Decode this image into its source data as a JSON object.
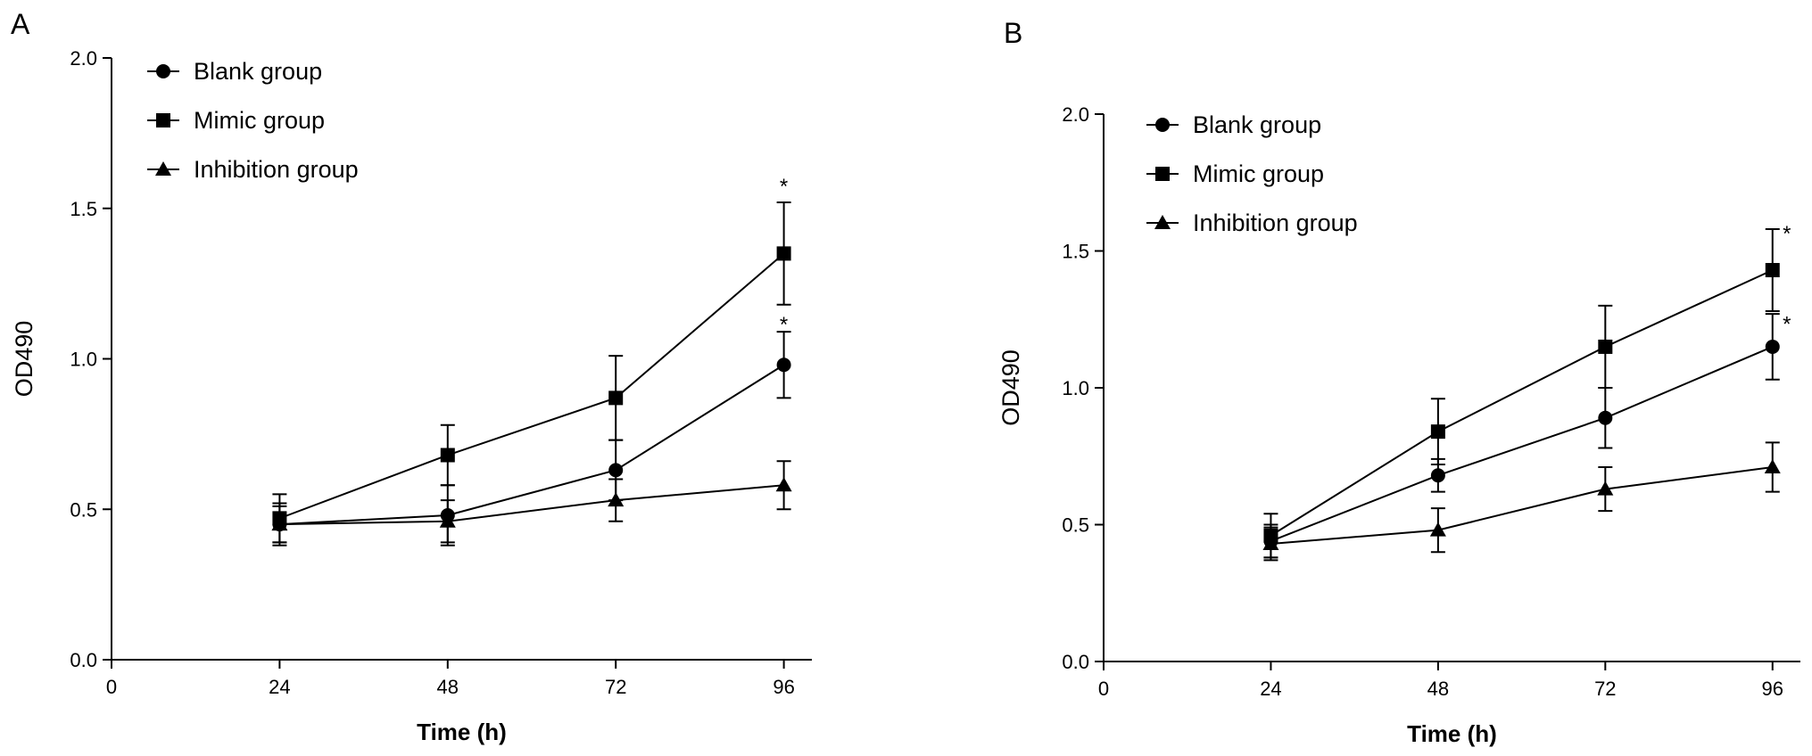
{
  "chart_data": [
    {
      "panel": "A",
      "type": "line",
      "xlabel": "Time (h)",
      "ylabel": "OD490",
      "x": [
        24,
        48,
        72,
        96
      ],
      "xlim": [
        0,
        100
      ],
      "ylim": [
        0,
        2.0
      ],
      "xticks": [
        "0",
        "24",
        "48",
        "72",
        "96"
      ],
      "yticks": [
        "0.0",
        "0.5",
        "1.0",
        "1.5",
        "2.0"
      ],
      "grid": false,
      "legend_position": "top-left",
      "series": [
        {
          "name": "Blank group",
          "marker": "circle",
          "values": [
            0.45,
            0.48,
            0.63,
            0.98
          ],
          "errors": [
            0.06,
            0.1,
            0.1,
            0.11
          ]
        },
        {
          "name": "Mimic group",
          "marker": "square",
          "values": [
            0.47,
            0.68,
            0.87,
            1.35
          ],
          "errors": [
            0.08,
            0.1,
            0.14,
            0.17
          ]
        },
        {
          "name": "Inhibition group",
          "marker": "triangle",
          "values": [
            0.45,
            0.46,
            0.53,
            0.58
          ],
          "errors": [
            0.07,
            0.07,
            0.07,
            0.08
          ]
        }
      ],
      "annotations": [
        {
          "text": "*",
          "x": 96,
          "y": 1.58
        },
        {
          "text": "*",
          "x": 96,
          "y": 1.12
        }
      ]
    },
    {
      "panel": "B",
      "type": "line",
      "xlabel": "Time (h)",
      "ylabel": "OD490",
      "x": [
        24,
        48,
        72,
        96
      ],
      "xlim": [
        0,
        100
      ],
      "ylim": [
        0,
        2.0
      ],
      "xticks": [
        "0",
        "24",
        "48",
        "72",
        "96"
      ],
      "yticks": [
        "0.0",
        "0.5",
        "1.0",
        "1.5",
        "2.0"
      ],
      "grid": false,
      "legend_position": "top-left",
      "series": [
        {
          "name": "Blank group",
          "marker": "circle",
          "values": [
            0.44,
            0.68,
            0.89,
            1.15
          ],
          "errors": [
            0.06,
            0.06,
            0.11,
            0.12
          ]
        },
        {
          "name": "Mimic group",
          "marker": "square",
          "values": [
            0.46,
            0.84,
            1.15,
            1.43
          ],
          "errors": [
            0.08,
            0.12,
            0.15,
            0.15
          ]
        },
        {
          "name": "Inhibition group",
          "marker": "triangle",
          "values": [
            0.43,
            0.48,
            0.63,
            0.71
          ],
          "errors": [
            0.06,
            0.08,
            0.08,
            0.09
          ]
        }
      ],
      "annotations": [
        {
          "text": "*",
          "x": 96,
          "y": 1.57
        },
        {
          "text": "*",
          "x": 96,
          "y": 1.24
        }
      ]
    }
  ]
}
